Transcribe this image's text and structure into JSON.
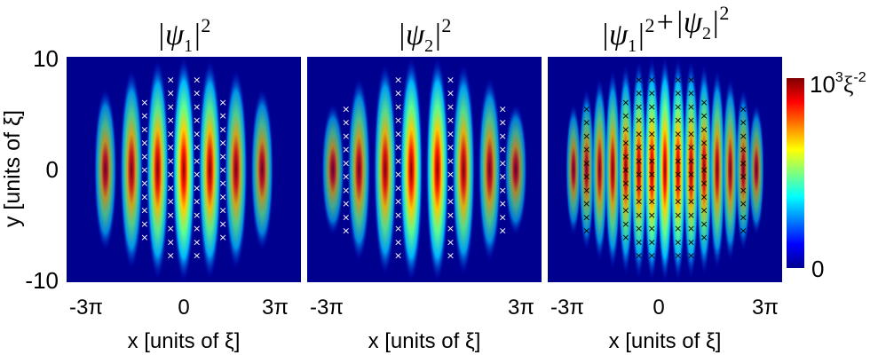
{
  "chart_data": {
    "type": "heatmap",
    "shared": {
      "xlabel": "x [units of ξ]",
      "ylabel": "y [units of ξ]",
      "x_range": [
        -9.42,
        9.42
      ],
      "y_range": [
        -10,
        10
      ],
      "x_ticks": [
        {
          "value": -9.42,
          "label": "-3π"
        },
        {
          "value": 0,
          "label": "0"
        },
        {
          "value": 9.42,
          "label": "3π"
        }
      ],
      "y_ticks": [
        {
          "value": 10,
          "label": "10"
        },
        {
          "value": 0,
          "label": "0"
        },
        {
          "value": -10,
          "label": "-10"
        }
      ],
      "colorbar": {
        "colormap": "jet",
        "min_label": "0",
        "max_label": "10",
        "max_label_exp": "3",
        "max_label_unit": "ξ",
        "max_label_unit_exp": "-2",
        "range": [
          0,
          1000
        ]
      }
    },
    "panels": [
      {
        "title_parts": [
          "|",
          "ψ",
          "1",
          "|",
          "2"
        ],
        "fringe_x": [
          -6.3,
          -4.2,
          -2.1,
          0,
          2.1,
          4.2,
          6.3
        ],
        "fringe_peak": [
          0.35,
          0.55,
          0.8,
          1.0,
          0.8,
          0.55,
          0.35
        ],
        "vortex_color": "#ffffff",
        "vortex_columns": [
          {
            "x": -3.15,
            "ys": [
              6.0,
              4.8,
              3.6,
              2.4,
              1.2,
              0,
              -1.2,
              -2.4,
              -3.6,
              -4.8,
              -6.0
            ]
          },
          {
            "x": -1.05,
            "ys": [
              8.0,
              6.8,
              5.6,
              4.4,
              3.2,
              2.0,
              0.8,
              -0.4,
              -1.6,
              -2.8,
              -4.0,
              -5.2,
              -6.4,
              -7.6
            ]
          },
          {
            "x": 1.05,
            "ys": [
              8.0,
              6.8,
              5.6,
              4.4,
              3.2,
              2.0,
              0.8,
              -0.4,
              -1.6,
              -2.8,
              -4.0,
              -5.2,
              -6.4,
              -7.6
            ]
          },
          {
            "x": 3.15,
            "ys": [
              6.0,
              4.8,
              3.6,
              2.4,
              1.2,
              0,
              -1.2,
              -2.4,
              -3.6,
              -4.8,
              -6.0
            ]
          }
        ]
      },
      {
        "title_parts": [
          "|",
          "ψ",
          "2",
          "|",
          "2"
        ],
        "fringe_x": [
          -7.35,
          -5.25,
          -3.15,
          -1.05,
          1.05,
          3.15,
          5.25,
          7.35
        ],
        "fringe_peak": [
          0.25,
          0.45,
          0.7,
          0.95,
          0.95,
          0.7,
          0.45,
          0.25
        ],
        "vortex_color": "#ffffff",
        "vortex_columns": [
          {
            "x": -6.3,
            "ys": [
              5.4,
              4.2,
              3.0,
              1.8,
              0.6,
              -0.6,
              -1.8,
              -3.0,
              -4.2,
              -5.4
            ]
          },
          {
            "x": -2.1,
            "ys": [
              8.0,
              6.8,
              5.6,
              4.4,
              3.2,
              2.0,
              0.8,
              -0.4,
              -1.6,
              -2.8,
              -4.0,
              -5.2,
              -6.4,
              -7.6
            ]
          },
          {
            "x": 2.1,
            "ys": [
              8.0,
              6.8,
              5.6,
              4.4,
              3.2,
              2.0,
              0.8,
              -0.4,
              -1.6,
              -2.8,
              -4.0,
              -5.2,
              -6.4,
              -7.6
            ]
          },
          {
            "x": 6.3,
            "ys": [
              5.4,
              4.2,
              3.0,
              1.8,
              0.6,
              -0.6,
              -1.8,
              -3.0,
              -4.2,
              -5.4
            ]
          }
        ]
      },
      {
        "title_parts": [
          "|",
          "ψ",
          "1",
          "|",
          "2",
          "+|",
          "ψ",
          "2",
          "|",
          "2"
        ],
        "fringe_x": [
          -7.35,
          -6.3,
          -5.25,
          -4.2,
          -3.15,
          -2.1,
          -1.05,
          0,
          1.05,
          2.1,
          3.15,
          4.2,
          5.25,
          6.3,
          7.35
        ],
        "fringe_peak": [
          0.25,
          0.35,
          0.45,
          0.55,
          0.7,
          0.8,
          0.95,
          1.0,
          0.95,
          0.8,
          0.7,
          0.55,
          0.45,
          0.35,
          0.25
        ],
        "vortex_color": "#000000",
        "vortex_columns": [
          {
            "x": -6.3,
            "ys": [
              5.4,
              4.2,
              3.0,
              1.8,
              0.6,
              -0.6,
              -1.8,
              -3.0,
              -4.2,
              -5.4
            ]
          },
          {
            "x": -3.15,
            "ys": [
              6.0,
              4.8,
              3.6,
              2.4,
              1.2,
              0,
              -1.2,
              -2.4,
              -3.6,
              -4.8,
              -6.0
            ]
          },
          {
            "x": -2.1,
            "ys": [
              8.0,
              6.8,
              5.6,
              4.4,
              3.2,
              2.0,
              0.8,
              -0.4,
              -1.6,
              -2.8,
              -4.0,
              -5.2,
              -6.4,
              -7.6
            ]
          },
          {
            "x": -1.05,
            "ys": [
              8.0,
              6.8,
              5.6,
              4.4,
              3.2,
              2.0,
              0.8,
              -0.4,
              -1.6,
              -2.8,
              -4.0,
              -5.2,
              -6.4,
              -7.6
            ]
          },
          {
            "x": 1.05,
            "ys": [
              8.0,
              6.8,
              5.6,
              4.4,
              3.2,
              2.0,
              0.8,
              -0.4,
              -1.6,
              -2.8,
              -4.0,
              -5.2,
              -6.4,
              -7.6
            ]
          },
          {
            "x": 2.1,
            "ys": [
              8.0,
              6.8,
              5.6,
              4.4,
              3.2,
              2.0,
              0.8,
              -0.4,
              -1.6,
              -2.8,
              -4.0,
              -5.2,
              -6.4,
              -7.6
            ]
          },
          {
            "x": 3.15,
            "ys": [
              6.0,
              4.8,
              3.6,
              2.4,
              1.2,
              0,
              -1.2,
              -2.4,
              -3.6,
              -4.8,
              -6.0
            ]
          },
          {
            "x": 6.3,
            "ys": [
              5.4,
              4.2,
              3.0,
              1.8,
              0.6,
              -0.6,
              -1.8,
              -3.0,
              -4.2,
              -5.4
            ]
          }
        ]
      }
    ]
  }
}
